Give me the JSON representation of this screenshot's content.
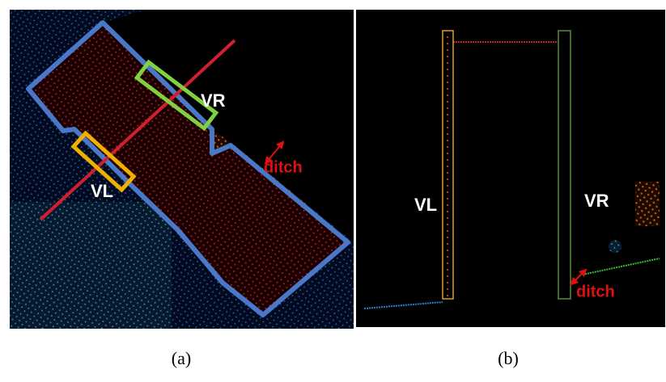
{
  "panels": [
    {
      "caption": "(a)",
      "labels": {
        "vr": "VR",
        "vl": "VL",
        "ditch": "ditch"
      }
    },
    {
      "caption": "(b)",
      "labels": {
        "vl": "VL",
        "vr": "VR",
        "ditch": "ditch"
      }
    }
  ]
}
